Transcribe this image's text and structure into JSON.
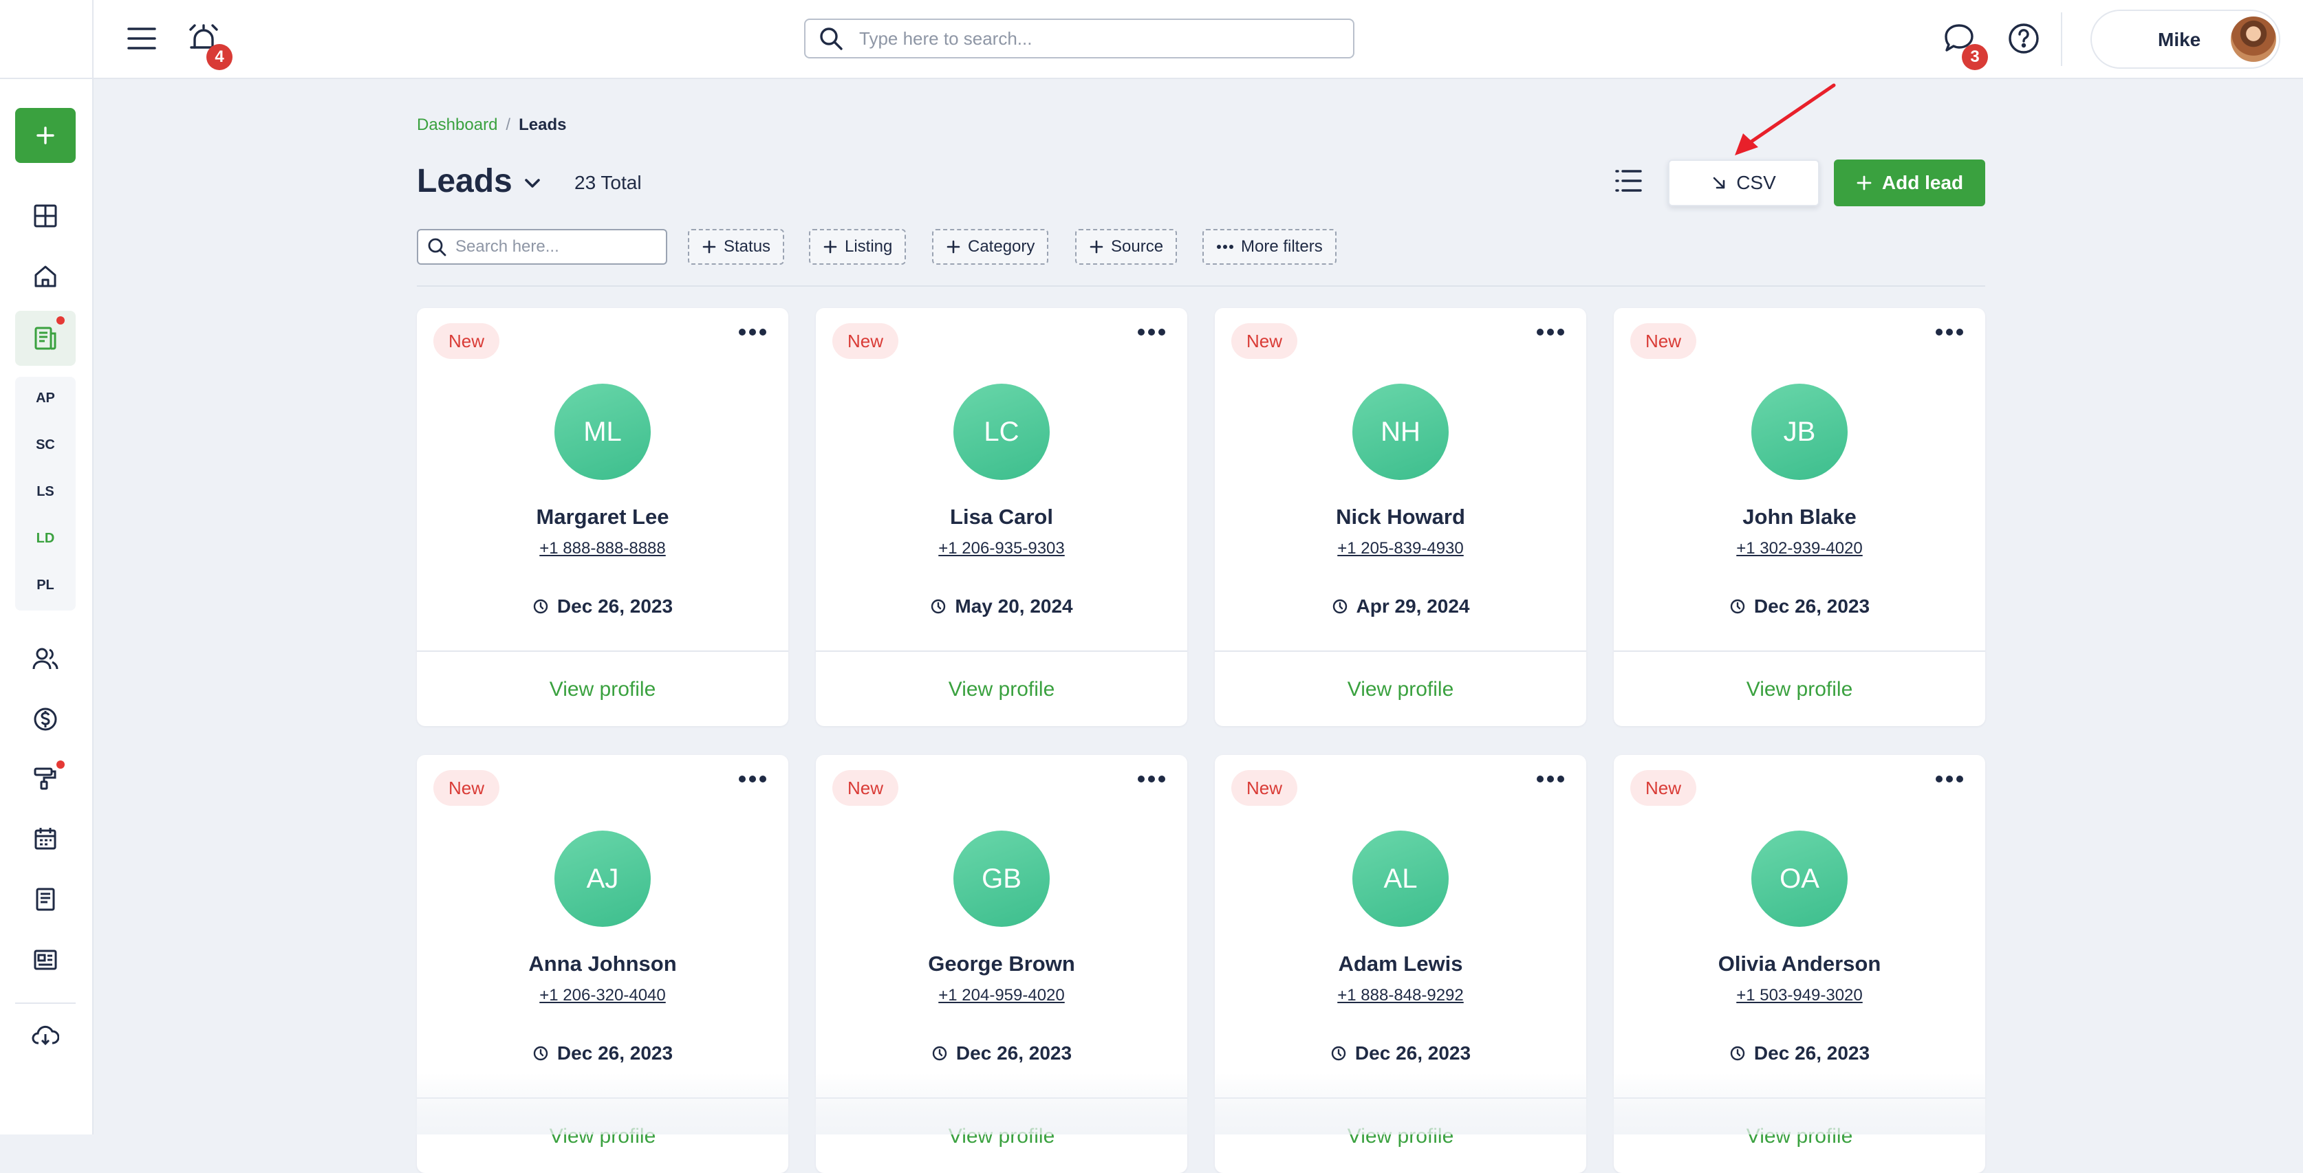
{
  "topbar": {
    "alarm_badge": "4",
    "search_placeholder": "Type here to search...",
    "chat_badge": "3",
    "user_name": "Mike"
  },
  "sidebar": {
    "abbr": [
      "AP",
      "SC",
      "LS",
      "LD",
      "PL"
    ]
  },
  "breadcrumb": {
    "home": "Dashboard",
    "sep": "/",
    "current": "Leads"
  },
  "header": {
    "title": "Leads",
    "total": "23 Total",
    "csv_label": "CSV",
    "add_label": "Add lead"
  },
  "filters": {
    "search_placeholder": "Search here...",
    "chips": [
      "Status",
      "Listing",
      "Category",
      "Source",
      "More filters"
    ]
  },
  "cards": [
    {
      "tag": "New",
      "initials": "ML",
      "name": "Margaret Lee",
      "phone": "+1 888-888-8888",
      "date": "Dec 26, 2023",
      "action": "View profile"
    },
    {
      "tag": "New",
      "initials": "LC",
      "name": "Lisa Carol",
      "phone": "+1 206-935-9303",
      "date": "May 20, 2024",
      "action": "View profile"
    },
    {
      "tag": "New",
      "initials": "NH",
      "name": "Nick Howard",
      "phone": "+1 205-839-4930",
      "date": "Apr 29, 2024",
      "action": "View profile"
    },
    {
      "tag": "New",
      "initials": "JB",
      "name": "John Blake",
      "phone": "+1 302-939-4020",
      "date": "Dec 26, 2023",
      "action": "View profile"
    },
    {
      "tag": "New",
      "initials": "AJ",
      "name": "Anna Johnson",
      "phone": "+1 206-320-4040",
      "date": "Dec 26, 2023",
      "action": "View profile"
    },
    {
      "tag": "New",
      "initials": "GB",
      "name": "George Brown",
      "phone": "+1 204-959-4020",
      "date": "Dec 26, 2023",
      "action": "View profile"
    },
    {
      "tag": "New",
      "initials": "AL",
      "name": "Adam Lewis",
      "phone": "+1 888-848-9292",
      "date": "Dec 26, 2023",
      "action": "View profile"
    },
    {
      "tag": "New",
      "initials": "OA",
      "name": "Olivia Anderson",
      "phone": "+1 503-949-3020",
      "date": "Dec 26, 2023",
      "action": "View profile"
    }
  ],
  "colors": {
    "accent_green": "#3aa13f",
    "badge_red": "#d93b36",
    "avatar_green": "#4ccb97",
    "background": "#eef1f6"
  }
}
